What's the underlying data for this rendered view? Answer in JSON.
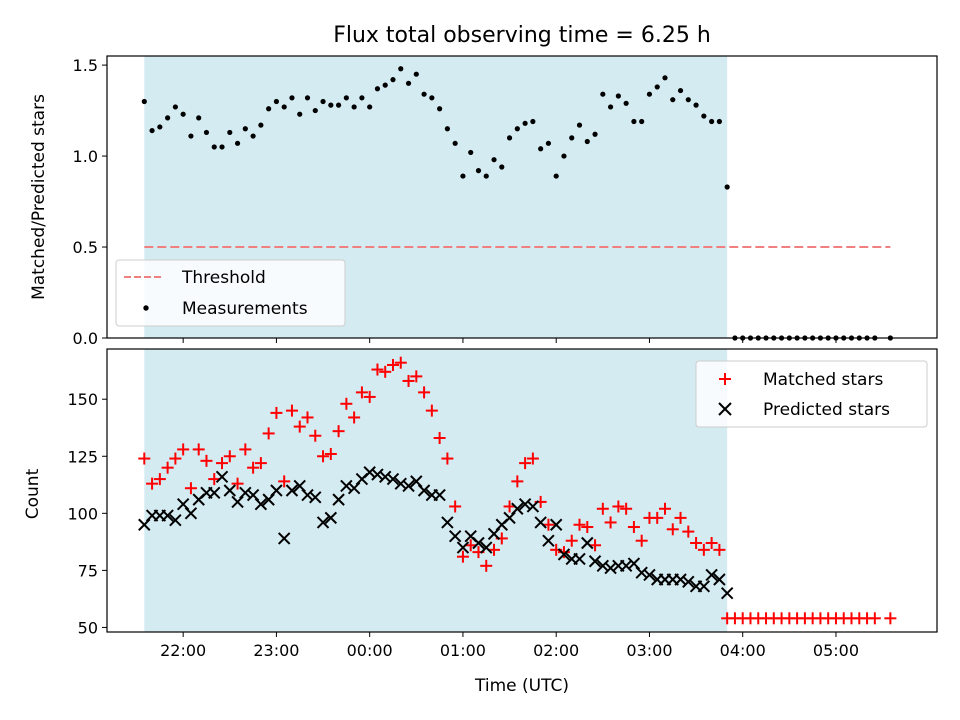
{
  "title": "Flux total observing time = 6.25 h",
  "colors": {
    "shade": "#add8e6",
    "threshold": "#f08080",
    "measurements": "#000000",
    "matched": "#ff0000",
    "predicted": "#000000"
  },
  "chart_data": [
    {
      "type": "scatter",
      "ylabel": "Matched/Predicted stars",
      "xlabel": "",
      "ylim": [
        0,
        1.55
      ],
      "xlim_hours": [
        "21:11",
        "06:05"
      ],
      "yticks": [
        "0.0",
        "0.5",
        "1.0",
        "1.5"
      ],
      "shaded_interval": [
        "21:35",
        "03:50"
      ],
      "legend": {
        "placement": "lower-left",
        "entries": [
          "Threshold",
          "Measurements"
        ]
      },
      "threshold": {
        "name": "Threshold",
        "value": 0.5,
        "x_range": [
          "21:35",
          "05:35"
        ],
        "style": "dashed"
      },
      "series": [
        {
          "name": "Measurements",
          "marker": "dot",
          "x": [
            "21:35",
            "21:40",
            "21:45",
            "21:50",
            "21:55",
            "22:00",
            "22:05",
            "22:10",
            "22:15",
            "22:20",
            "22:25",
            "22:30",
            "22:35",
            "22:40",
            "22:45",
            "22:50",
            "22:55",
            "23:00",
            "23:05",
            "23:10",
            "23:15",
            "23:20",
            "23:25",
            "23:30",
            "23:35",
            "23:40",
            "23:45",
            "23:50",
            "23:55",
            "00:00",
            "00:05",
            "00:10",
            "00:15",
            "00:20",
            "00:25",
            "00:30",
            "00:35",
            "00:40",
            "00:45",
            "00:50",
            "00:55",
            "01:00",
            "01:05",
            "01:10",
            "01:15",
            "01:20",
            "01:25",
            "01:30",
            "01:35",
            "01:40",
            "01:45",
            "01:50",
            "01:55",
            "02:00",
            "02:05",
            "02:10",
            "02:15",
            "02:20",
            "02:25",
            "02:30",
            "02:35",
            "02:40",
            "02:45",
            "02:50",
            "02:55",
            "03:00",
            "03:05",
            "03:10",
            "03:15",
            "03:20",
            "03:25",
            "03:30",
            "03:35",
            "03:40",
            "03:45",
            "03:50",
            "03:55",
            "04:00",
            "04:05",
            "04:10",
            "04:15",
            "04:20",
            "04:25",
            "04:30",
            "04:35",
            "04:40",
            "04:45",
            "04:50",
            "04:55",
            "05:00",
            "05:05",
            "05:10",
            "05:15",
            "05:20",
            "05:25",
            "05:35"
          ],
          "y": [
            1.3,
            1.14,
            1.16,
            1.21,
            1.27,
            1.23,
            1.11,
            1.21,
            1.13,
            1.05,
            1.05,
            1.13,
            1.07,
            1.15,
            1.11,
            1.17,
            1.26,
            1.3,
            1.27,
            1.32,
            1.23,
            1.32,
            1.25,
            1.3,
            1.28,
            1.28,
            1.32,
            1.27,
            1.32,
            1.27,
            1.37,
            1.39,
            1.42,
            1.48,
            1.4,
            1.45,
            1.34,
            1.32,
            1.26,
            1.15,
            1.07,
            0.89,
            1.02,
            0.92,
            0.89,
            0.98,
            0.94,
            1.1,
            1.15,
            1.18,
            1.19,
            1.04,
            1.07,
            0.89,
            1.0,
            1.1,
            1.17,
            1.08,
            1.12,
            1.34,
            1.27,
            1.33,
            1.29,
            1.19,
            1.19,
            1.34,
            1.38,
            1.43,
            1.31,
            1.36,
            1.31,
            1.28,
            1.22,
            1.19,
            1.19,
            0.83,
            0,
            0,
            0,
            0,
            0,
            0,
            0,
            0,
            0,
            0,
            0,
            0,
            0,
            0,
            0,
            0,
            0,
            0,
            0,
            0
          ]
        }
      ]
    },
    {
      "type": "scatter",
      "ylabel": "Count",
      "xlabel": "Time (UTC)",
      "ylim": [
        48,
        172
      ],
      "xlim_hours": [
        "21:11",
        "06:05"
      ],
      "yticks": [
        "50",
        "75",
        "100",
        "125",
        "150"
      ],
      "xticks": [
        "22:00",
        "23:00",
        "00:00",
        "01:00",
        "02:00",
        "03:00",
        "04:00",
        "05:00"
      ],
      "shaded_interval": [
        "21:35",
        "03:50"
      ],
      "legend": {
        "placement": "upper-right",
        "entries": [
          "Matched stars",
          "Predicted stars"
        ]
      },
      "series": [
        {
          "name": "Matched stars",
          "marker": "plus",
          "x": [
            "21:35",
            "21:40",
            "21:45",
            "21:50",
            "21:55",
            "22:00",
            "22:05",
            "22:10",
            "22:15",
            "22:20",
            "22:25",
            "22:30",
            "22:35",
            "22:40",
            "22:45",
            "22:50",
            "22:55",
            "23:00",
            "23:05",
            "23:10",
            "23:15",
            "23:20",
            "23:25",
            "23:30",
            "23:35",
            "23:40",
            "23:45",
            "23:50",
            "23:55",
            "00:00",
            "00:05",
            "00:10",
            "00:15",
            "00:20",
            "00:25",
            "00:30",
            "00:35",
            "00:40",
            "00:45",
            "00:50",
            "00:55",
            "01:00",
            "01:05",
            "01:10",
            "01:15",
            "01:20",
            "01:25",
            "01:30",
            "01:35",
            "01:40",
            "01:45",
            "01:50",
            "01:55",
            "02:00",
            "02:05",
            "02:10",
            "02:15",
            "02:20",
            "02:25",
            "02:30",
            "02:35",
            "02:40",
            "02:45",
            "02:50",
            "02:55",
            "03:00",
            "03:05",
            "03:10",
            "03:15",
            "03:20",
            "03:25",
            "03:30",
            "03:35",
            "03:40",
            "03:45",
            "03:50",
            "03:55",
            "04:00",
            "04:05",
            "04:10",
            "04:15",
            "04:20",
            "04:25",
            "04:30",
            "04:35",
            "04:40",
            "04:45",
            "04:50",
            "04:55",
            "05:00",
            "05:05",
            "05:10",
            "05:15",
            "05:20",
            "05:25",
            "05:35"
          ],
          "y": [
            124,
            113,
            115,
            120,
            124,
            128,
            111,
            128,
            123,
            115,
            122,
            125,
            113,
            128,
            120,
            122,
            135,
            144,
            114,
            145,
            138,
            142,
            134,
            125,
            126,
            136,
            148,
            142,
            153,
            151,
            163,
            162,
            165,
            166,
            158,
            160,
            153,
            145,
            133,
            124,
            103,
            81,
            86,
            83,
            77,
            84,
            89,
            103,
            114,
            122,
            124,
            105,
            95,
            84,
            83,
            88,
            95,
            94,
            86,
            102,
            96,
            103,
            102,
            94,
            88,
            98,
            98,
            102,
            93,
            98,
            92,
            87,
            84,
            87,
            84,
            54,
            54,
            54,
            54,
            54,
            54,
            54,
            54,
            54,
            54,
            54,
            54,
            54,
            54,
            54,
            54,
            54,
            54,
            54,
            54,
            54
          ]
        },
        {
          "name": "Predicted stars",
          "marker": "x",
          "x": [
            "21:35",
            "21:40",
            "21:45",
            "21:50",
            "21:55",
            "22:00",
            "22:05",
            "22:10",
            "22:15",
            "22:20",
            "22:25",
            "22:30",
            "22:35",
            "22:40",
            "22:45",
            "22:50",
            "22:55",
            "23:00",
            "23:05",
            "23:10",
            "23:15",
            "23:20",
            "23:25",
            "23:30",
            "23:35",
            "23:40",
            "23:45",
            "23:50",
            "23:55",
            "00:00",
            "00:05",
            "00:10",
            "00:15",
            "00:20",
            "00:25",
            "00:30",
            "00:35",
            "00:40",
            "00:45",
            "00:50",
            "00:55",
            "01:00",
            "01:05",
            "01:10",
            "01:15",
            "01:20",
            "01:25",
            "01:30",
            "01:35",
            "01:40",
            "01:45",
            "01:50",
            "01:55",
            "02:00",
            "02:05",
            "02:10",
            "02:15",
            "02:20",
            "02:25",
            "02:30",
            "02:35",
            "02:40",
            "02:45",
            "02:50",
            "02:55",
            "03:00",
            "03:05",
            "03:10",
            "03:15",
            "03:20",
            "03:25",
            "03:30",
            "03:35",
            "03:40",
            "03:45",
            "03:50"
          ],
          "y": [
            95,
            99,
            99,
            99,
            97,
            104,
            100,
            106,
            109,
            109,
            116,
            110,
            105,
            109,
            108,
            104,
            106,
            110,
            89,
            110,
            112,
            108,
            107,
            96,
            98,
            106,
            112,
            111,
            115,
            118,
            117,
            116,
            115,
            113,
            112,
            114,
            110,
            108,
            108,
            96,
            90,
            85,
            90,
            87,
            85,
            91,
            95,
            98,
            102,
            104,
            103,
            96,
            88,
            95,
            82,
            80,
            80,
            87,
            79,
            77,
            76,
            77,
            77,
            78,
            74,
            73,
            71,
            71,
            71,
            71,
            70,
            68,
            68,
            73,
            71,
            65
          ]
        }
      ]
    }
  ]
}
